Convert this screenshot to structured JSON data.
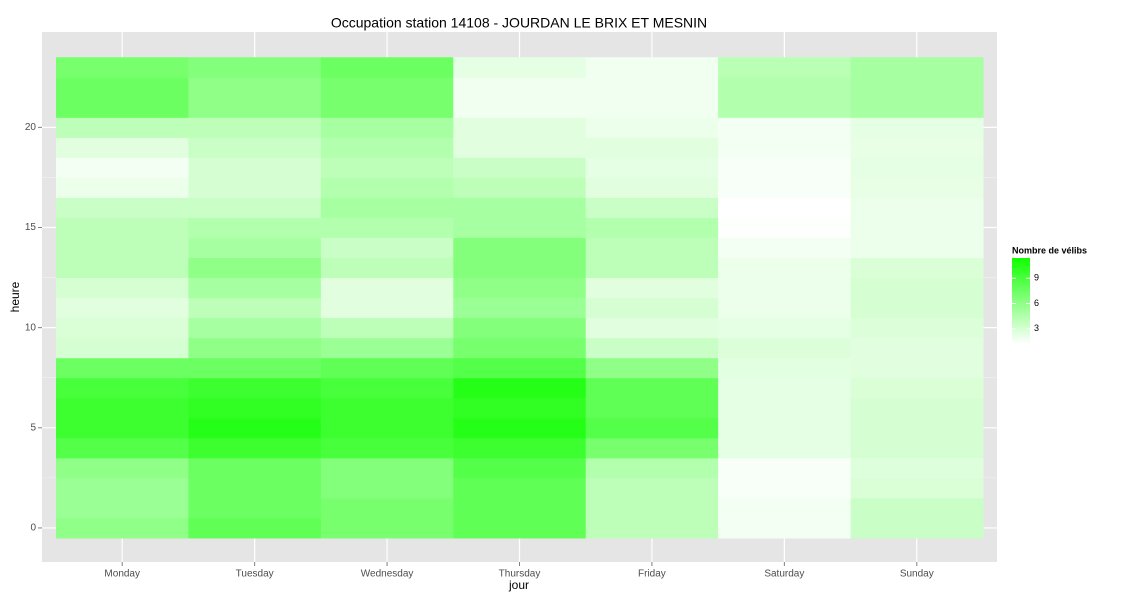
{
  "chart_data": {
    "type": "heatmap",
    "title": "Occupation station 14108 - JOURDAN LE BRIX ET MESNIN",
    "x_label": "jour",
    "y_label": "heure",
    "categories": [
      "Monday",
      "Tuesday",
      "Wednesday",
      "Thursday",
      "Friday",
      "Saturday",
      "Sunday"
    ],
    "y": [
      0,
      1,
      2,
      3,
      4,
      5,
      6,
      7,
      8,
      9,
      10,
      11,
      12,
      13,
      14,
      15,
      16,
      17,
      18,
      19,
      20,
      21,
      22,
      23
    ],
    "values": [
      [
        6,
        5.5,
        5.5,
        6,
        8.5,
        9.5,
        9.5,
        9,
        7.5,
        3,
        2.8,
        2.5,
        3,
        4,
        4,
        4,
        3.5,
        2,
        1.7,
        2.5,
        4,
        7.5,
        7.5,
        7
      ],
      [
        8,
        7.5,
        7.5,
        7.5,
        9.5,
        10.5,
        10,
        9.5,
        7.5,
        6,
        5,
        4,
        5,
        6,
        5,
        4.5,
        3.5,
        3,
        3,
        3.5,
        4,
        6,
        6,
        6.5
      ],
      [
        7,
        7,
        6.5,
        6.5,
        9,
        9.5,
        9.5,
        9,
        8,
        5.5,
        4,
        2.5,
        2.5,
        4,
        3.5,
        4.5,
        5,
        4.5,
        4,
        4.5,
        5,
        7,
        7,
        7.5
      ],
      [
        8,
        8,
        8,
        8.5,
        9.5,
        10.5,
        10,
        10.5,
        8.5,
        7,
        6.5,
        5.5,
        6,
        6.5,
        6.5,
        5,
        5,
        4,
        3.5,
        2.5,
        2.5,
        1.8,
        1.8,
        2.3
      ],
      [
        4,
        4,
        4,
        4.5,
        7,
        8.5,
        8,
        8,
        6,
        3.5,
        2.5,
        3,
        2.5,
        4,
        4,
        4.5,
        3.5,
        2.5,
        2.3,
        2.5,
        2,
        1.8,
        1.8,
        1.8
      ],
      [
        1.7,
        1.7,
        1.5,
        1.5,
        2.3,
        2.3,
        2.3,
        2.3,
        2.4,
        2.7,
        2.3,
        2,
        2,
        2,
        1.7,
        1.3,
        1.2,
        1.5,
        1.5,
        1.7,
        1.7,
        4.5,
        4.5,
        4.2
      ],
      [
        3.5,
        3.5,
        2.8,
        2.6,
        3,
        3,
        3,
        2.8,
        2.5,
        2.5,
        2.7,
        3,
        3,
        2.8,
        2,
        2,
        2,
        2.2,
        2.3,
        2.2,
        2.3,
        5,
        5,
        5
      ]
    ],
    "ylim": [
      -1.7,
      24.76
    ],
    "yticks": [
      0,
      5,
      10,
      15,
      20
    ],
    "grid": true,
    "legend_title": "Nombre de vélibs",
    "legend_ticks": [
      3,
      6,
      9
    ],
    "color_lim": [
      1.2,
      11.4
    ],
    "color_low": "#ffffff",
    "color_high": "#10ff00"
  }
}
